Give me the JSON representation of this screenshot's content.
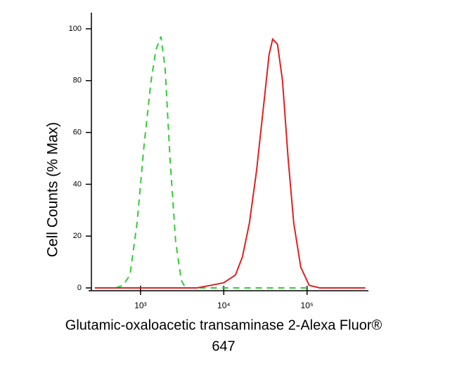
{
  "chart_data": {
    "type": "line",
    "ylabel": "Cell Counts (% Max)",
    "xlabel": [
      "Glutamic-oxaloacetic transaminase 2-Alexa Fluor®",
      "647"
    ],
    "xscale": "log",
    "xlim": [
      257,
      525000
    ],
    "xticks": [
      {
        "value": 1000,
        "label": "10³"
      },
      {
        "value": 10000,
        "label": "10⁴"
      },
      {
        "value": 100000,
        "label": "10⁵"
      }
    ],
    "ylim": [
      0,
      100
    ],
    "yticks": [
      0,
      20,
      40,
      60,
      80,
      100
    ],
    "series": [
      {
        "color": "#33cc33",
        "dash": true,
        "x": [
          507,
          615,
          747,
          908,
          1102,
          1339,
          1534,
          1758,
          1973,
          2260,
          2640,
          3085,
          3467,
          106000
        ],
        "values": [
          0,
          1,
          5,
          25,
          55,
          80,
          92,
          97,
          85,
          50,
          18,
          3,
          0,
          0
        ]
      },
      {
        "color": "#e02020",
        "dash": false,
        "x": [
          282,
          4730,
          6980,
          10000,
          13800,
          16750,
          20300,
          24700,
          30000,
          35000,
          38600,
          44200,
          50700,
          59200,
          69200,
          84000,
          106000,
          142000,
          501000
        ],
        "values": [
          0,
          0,
          1,
          2,
          5,
          12,
          25,
          45,
          70,
          90,
          96,
          94,
          80,
          50,
          25,
          8,
          1,
          0,
          0
        ]
      }
    ]
  }
}
